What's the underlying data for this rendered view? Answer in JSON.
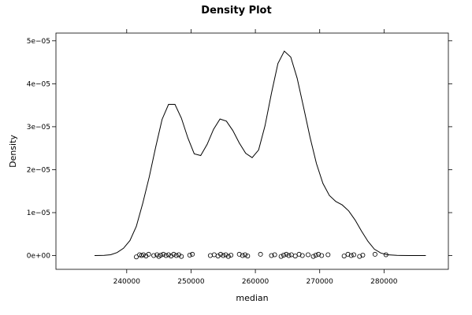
{
  "chart_data": {
    "type": "line",
    "title": "Density Plot",
    "xlabel": "median",
    "ylabel": "Density",
    "xlim": [
      229000,
      290000
    ],
    "ylim": [
      -3.2e-06,
      5.18e-05
    ],
    "x_ticks": [
      240000,
      250000,
      260000,
      270000,
      280000
    ],
    "x_tick_labels": [
      "240000",
      "250000",
      "260000",
      "270000",
      "280000"
    ],
    "y_ticks": [
      0,
      1e-05,
      2e-05,
      3e-05,
      4e-05,
      5e-05
    ],
    "y_tick_labels": [
      "0e+00",
      "1e−05",
      "2e−05",
      "3e−05",
      "4e−05",
      "5e−05"
    ],
    "grid": false,
    "legend": "none",
    "series": [
      {
        "points": [
          [
            235000,
            0.0
          ],
          [
            236500,
            5e-08
          ],
          [
            237500,
            2e-07
          ],
          [
            238500,
            7e-07
          ],
          [
            239500,
            1.7e-06
          ],
          [
            240500,
            3.5e-06
          ],
          [
            241500,
            6.8e-06
          ],
          [
            242500,
            1.22e-05
          ],
          [
            243500,
            1.83e-05
          ],
          [
            244500,
            2.52e-05
          ],
          [
            245500,
            3.17e-05
          ],
          [
            246500,
            3.52e-05
          ],
          [
            247500,
            3.52e-05
          ],
          [
            248500,
            3.2e-05
          ],
          [
            249500,
            2.74e-05
          ],
          [
            250500,
            2.37e-05
          ],
          [
            251500,
            2.33e-05
          ],
          [
            252500,
            2.59e-05
          ],
          [
            253500,
            2.94e-05
          ],
          [
            254500,
            3.18e-05
          ],
          [
            255500,
            3.13e-05
          ],
          [
            256500,
            2.91e-05
          ],
          [
            257500,
            2.62e-05
          ],
          [
            258500,
            2.38e-05
          ],
          [
            259500,
            2.28e-05
          ],
          [
            260500,
            2.46e-05
          ],
          [
            261500,
            3.02e-05
          ],
          [
            262500,
            3.78e-05
          ],
          [
            263500,
            4.47e-05
          ],
          [
            264500,
            4.76e-05
          ],
          [
            265500,
            4.62e-05
          ],
          [
            266500,
            4.13e-05
          ],
          [
            267500,
            3.45e-05
          ],
          [
            268500,
            2.75e-05
          ],
          [
            269500,
            2.14e-05
          ],
          [
            270500,
            1.68e-05
          ],
          [
            271500,
            1.4e-05
          ],
          [
            272500,
            1.26e-05
          ],
          [
            273500,
            1.18e-05
          ],
          [
            274500,
            1.04e-05
          ],
          [
            275500,
            8.3e-06
          ],
          [
            276500,
            5.7e-06
          ],
          [
            277500,
            3.3e-06
          ],
          [
            278500,
            1.5e-06
          ],
          [
            279500,
            6e-07
          ],
          [
            280500,
            2e-07
          ],
          [
            282000,
            5e-08
          ],
          [
            284000,
            0.0
          ],
          [
            286500,
            0.0
          ]
        ]
      }
    ],
    "rug_points": [
      [
        241500,
        -3e-07
      ],
      [
        242000,
        2e-07
      ],
      [
        242300,
        0.0
      ],
      [
        242600,
        2e-07
      ],
      [
        243000,
        -1e-07
      ],
      [
        243400,
        3e-07
      ],
      [
        244200,
        0.0
      ],
      [
        244700,
        2e-07
      ],
      [
        245000,
        -2e-07
      ],
      [
        245300,
        1e-07
      ],
      [
        245700,
        3e-07
      ],
      [
        246100,
        0.0
      ],
      [
        246500,
        2e-07
      ],
      [
        246900,
        -1e-07
      ],
      [
        247300,
        3e-07
      ],
      [
        247700,
        0.0
      ],
      [
        248100,
        2e-07
      ],
      [
        248500,
        -2e-07
      ],
      [
        249800,
        1e-07
      ],
      [
        250200,
        3e-07
      ],
      [
        253000,
        0.0
      ],
      [
        253600,
        2e-07
      ],
      [
        254200,
        -1e-07
      ],
      [
        254600,
        3e-07
      ],
      [
        255000,
        0.0
      ],
      [
        255400,
        2e-07
      ],
      [
        255800,
        -2e-07
      ],
      [
        256200,
        1e-07
      ],
      [
        257500,
        3e-07
      ],
      [
        258000,
        0.0
      ],
      [
        258400,
        2e-07
      ],
      [
        258800,
        -1e-07
      ],
      [
        260800,
        3e-07
      ],
      [
        262500,
        0.0
      ],
      [
        263000,
        2e-07
      ],
      [
        264000,
        -2e-07
      ],
      [
        264400,
        1e-07
      ],
      [
        264800,
        3e-07
      ],
      [
        265200,
        0.0
      ],
      [
        265600,
        2e-07
      ],
      [
        266200,
        -1e-07
      ],
      [
        266800,
        3e-07
      ],
      [
        267300,
        0.0
      ],
      [
        268200,
        2e-07
      ],
      [
        269000,
        -2e-07
      ],
      [
        269400,
        1e-07
      ],
      [
        269800,
        3e-07
      ],
      [
        270300,
        0.0
      ],
      [
        271300,
        2e-07
      ],
      [
        273800,
        -1e-07
      ],
      [
        274400,
        3e-07
      ],
      [
        274900,
        0.0
      ],
      [
        275300,
        2e-07
      ],
      [
        276200,
        -2e-07
      ],
      [
        276700,
        1e-07
      ],
      [
        278600,
        3e-07
      ],
      [
        280300,
        2e-07
      ]
    ]
  }
}
